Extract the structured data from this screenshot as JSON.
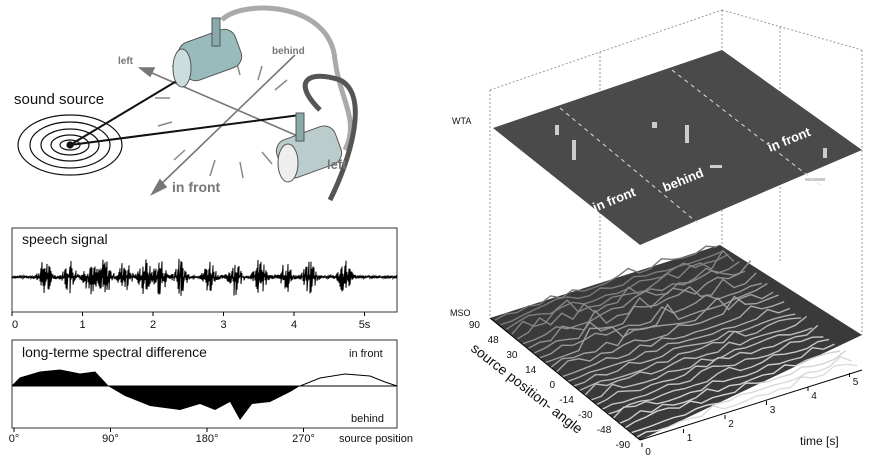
{
  "diagram": {
    "labels": [
      "sound source",
      "left",
      "behind",
      "left",
      "in front"
    ]
  },
  "speech": {
    "title": "speech signal",
    "xticks": [
      "0",
      "1",
      "2",
      "3",
      "4",
      "5s"
    ]
  },
  "spectral": {
    "title": "long-terme spectral difference",
    "top_label": "in front",
    "bottom_label": "behind",
    "xticks": [
      "0°",
      "90°",
      "180°",
      "270°"
    ],
    "xlabel": "source position"
  },
  "model": {
    "wta": "WTA",
    "mso": "MSO",
    "regions": [
      "in front",
      "behind",
      "in front"
    ],
    "angle_label": "source position- angle",
    "angle_ticks": [
      "90",
      "48",
      "30",
      "14",
      "0",
      "-14",
      "-30",
      "-48",
      "-90"
    ],
    "time_ticks": [
      "0",
      "1",
      "2",
      "3",
      "4",
      "5"
    ],
    "time_label": "time [s]"
  }
}
